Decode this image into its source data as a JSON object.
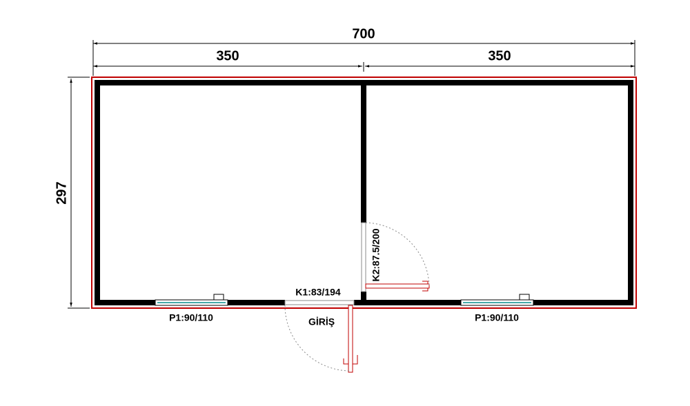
{
  "dimensions": {
    "total_width": 700,
    "left_width": 350,
    "right_width": 350,
    "depth": 297
  },
  "labels": {
    "entrance_door": "K1:83/194",
    "entrance": "GİRİŞ",
    "inner_door": "K2:87.5/200",
    "window_left": "P1:90/110",
    "window_right": "P1:90/110"
  }
}
